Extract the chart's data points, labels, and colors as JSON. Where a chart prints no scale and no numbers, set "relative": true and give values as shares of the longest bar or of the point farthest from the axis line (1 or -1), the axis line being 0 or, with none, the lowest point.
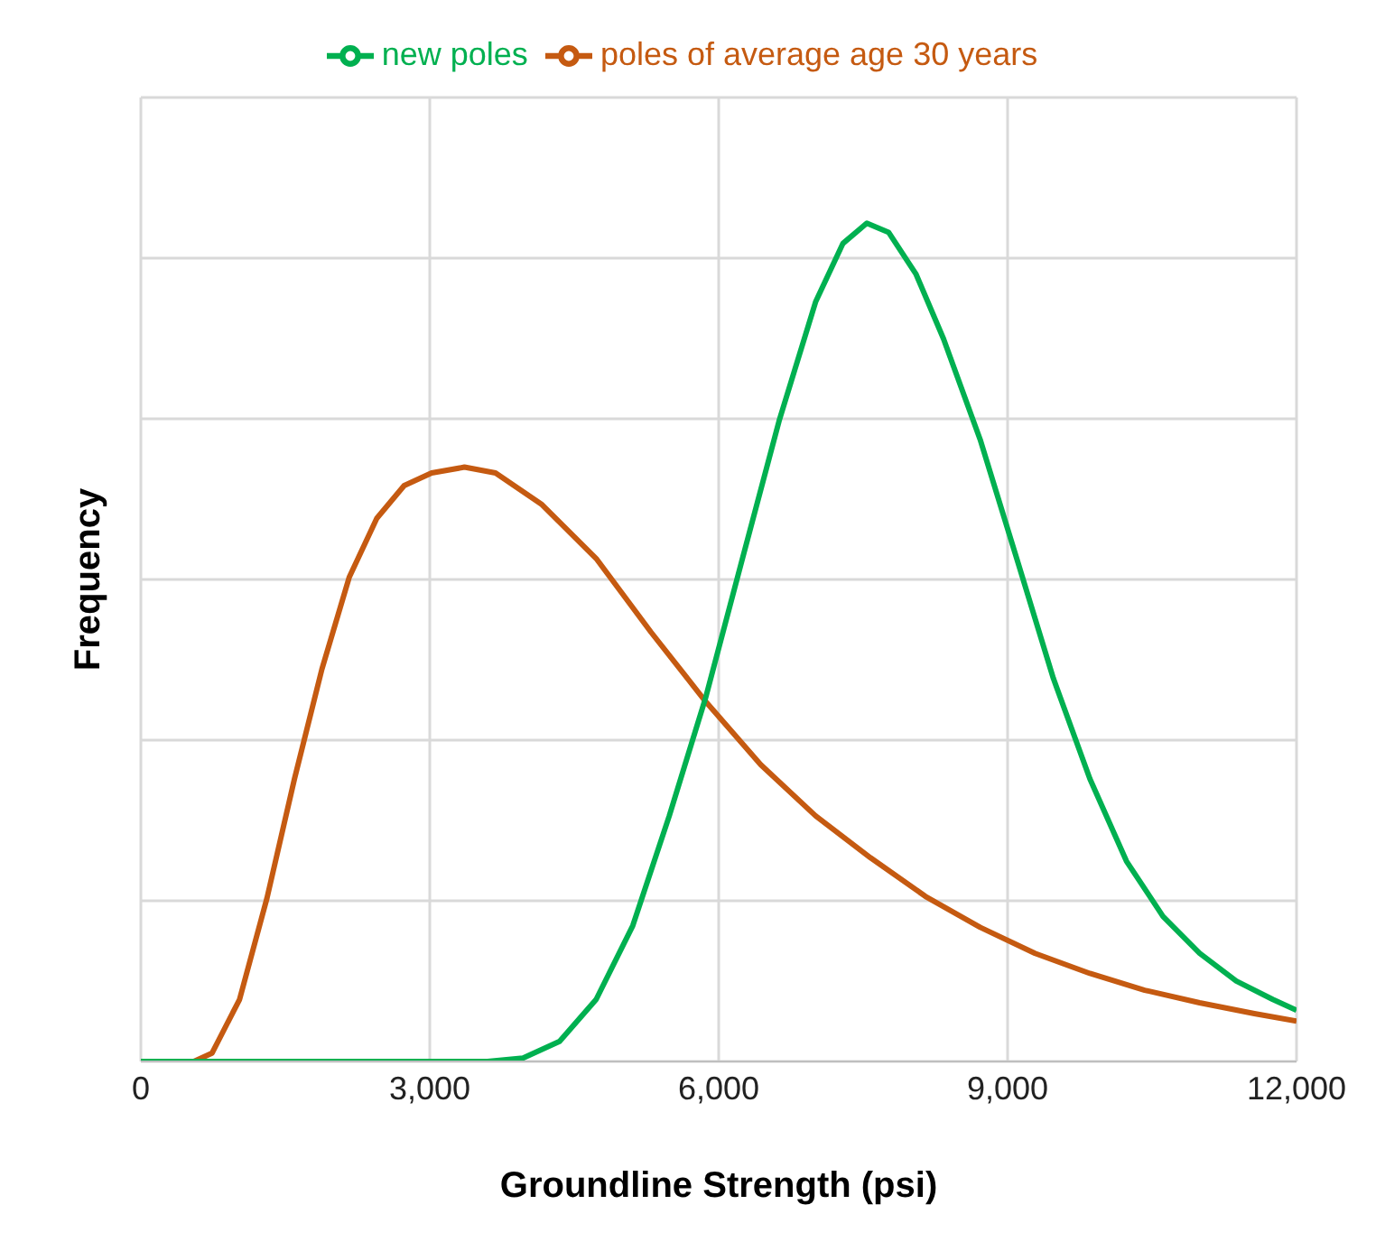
{
  "chart_data": {
    "type": "line",
    "relative": true,
    "xlabel": "Groundline Strength (psi)",
    "ylabel": "Frequency",
    "xlim": [
      0,
      12000
    ],
    "xticks": [
      0,
      {
        "value": 3000,
        "label": "3,000"
      },
      {
        "value": 6000,
        "label": "6,000"
      },
      {
        "value": 9000,
        "label": "9,000"
      },
      {
        "value": 12000,
        "label": "12,000"
      }
    ],
    "grid": true,
    "legend": "top",
    "marker": "none",
    "line_style": "solid",
    "series": [
      {
        "name": "poles of average age 30 years",
        "color": "#c55a11",
        "x": [
          0,
          550,
          740,
          1025,
          1310,
          1595,
          1880,
          2165,
          2450,
          2734,
          3019,
          3360,
          3683,
          4158,
          4728,
          5298,
          5867,
          6437,
          7006,
          7576,
          8146,
          8715,
          9285,
          9855,
          10424,
          10994,
          11563,
          12000
        ],
        "values": [
          0,
          0,
          0.01,
          0.074,
          0.195,
          0.337,
          0.468,
          0.578,
          0.648,
          0.687,
          0.702,
          0.709,
          0.702,
          0.665,
          0.6,
          0.512,
          0.429,
          0.354,
          0.293,
          0.243,
          0.197,
          0.16,
          0.129,
          0.105,
          0.085,
          0.07,
          0.057,
          0.048
        ]
      },
      {
        "name": "new poles",
        "color": "#00b050",
        "x": [
          0,
          3600,
          3968,
          4348,
          4728,
          5108,
          5487,
          5867,
          6247,
          6627,
          7006,
          7291,
          7538,
          7766,
          8050,
          8335,
          8715,
          9095,
          9475,
          9855,
          10234,
          10614,
          10994,
          11374,
          11753,
          12000
        ],
        "values": [
          0,
          0,
          0.004,
          0.024,
          0.074,
          0.162,
          0.293,
          0.435,
          0.6,
          0.764,
          0.906,
          0.976,
          1,
          0.989,
          0.939,
          0.862,
          0.742,
          0.6,
          0.457,
          0.337,
          0.239,
          0.173,
          0.129,
          0.096,
          0.074,
          0.061
        ]
      }
    ]
  }
}
